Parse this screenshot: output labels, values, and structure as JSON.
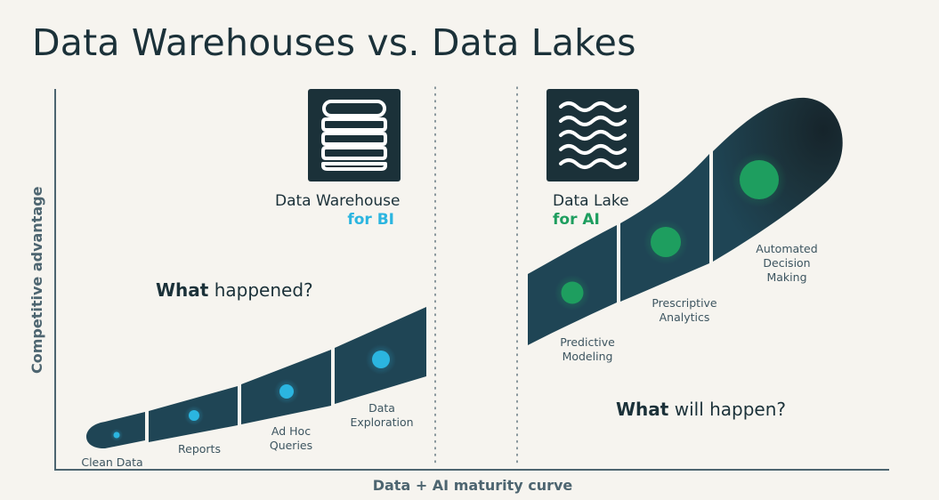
{
  "title": "Data Warehouses vs. Data Lakes",
  "axes": {
    "y_label": "Competitive advantage",
    "x_label": "Data + AI maturity curve"
  },
  "warehouse": {
    "icon": "database-icon",
    "title": "Data Warehouse",
    "subtitle": "for BI",
    "accent": "#2bb5e0",
    "question_bold": "What",
    "question_rest": " happened?",
    "stages": [
      {
        "lines": [
          "Clean Data"
        ]
      },
      {
        "lines": [
          "Reports"
        ]
      },
      {
        "lines": [
          "Ad Hoc",
          "Queries"
        ]
      },
      {
        "lines": [
          "Data",
          "Exploration"
        ]
      }
    ]
  },
  "lake": {
    "icon": "waves-icon",
    "title": "Data Lake",
    "subtitle": "for AI",
    "accent": "#1e9e5f",
    "question_bold": "What",
    "question_rest": " will happen?",
    "stages": [
      {
        "lines": [
          "Predictive",
          "Modeling"
        ]
      },
      {
        "lines": [
          "Prescriptive",
          "Analytics"
        ]
      },
      {
        "lines": [
          "Automated",
          "Decision",
          "Making"
        ]
      }
    ]
  },
  "colors": {
    "background": "#f6f4ef",
    "dark": "#1b3139",
    "segment": "#1f4555"
  }
}
